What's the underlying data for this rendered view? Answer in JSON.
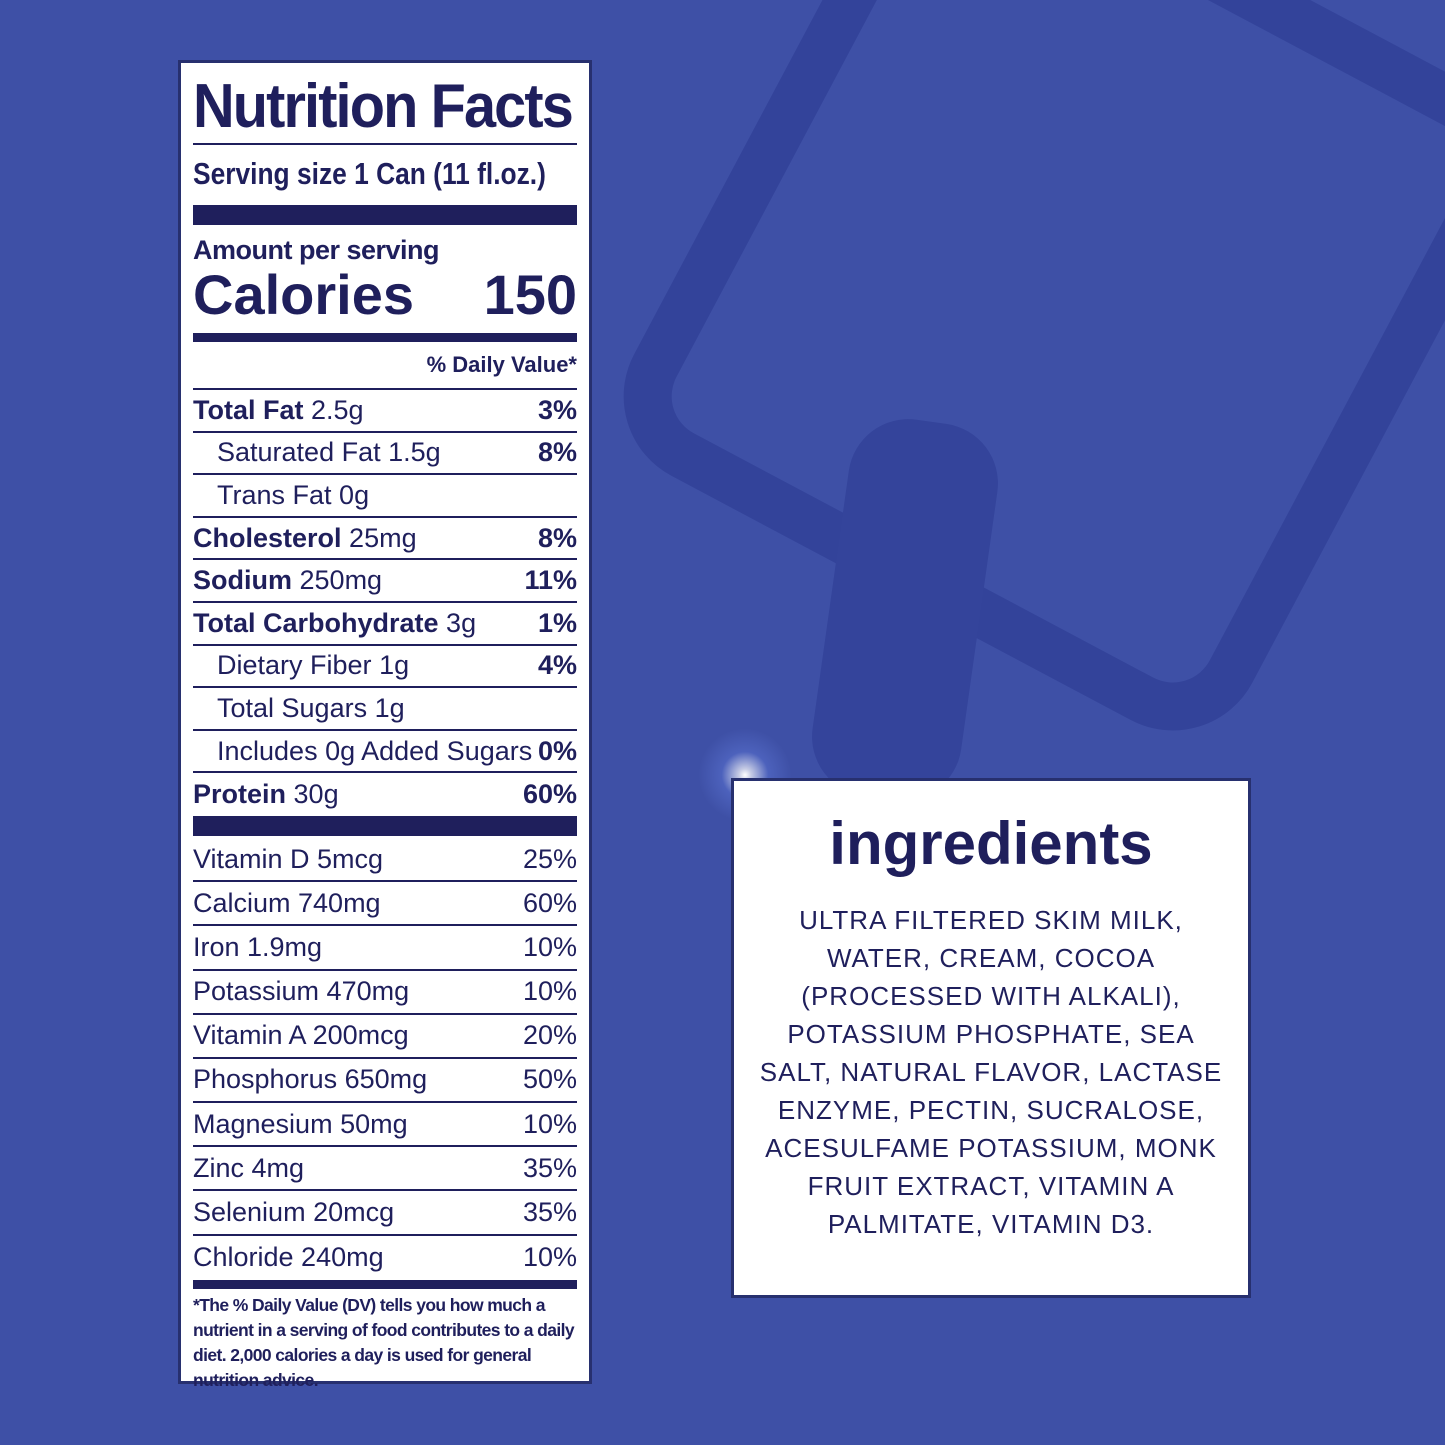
{
  "colors": {
    "background": "#3e50a6",
    "text": "#1f1f5c",
    "panel": "#ffffff"
  },
  "nutrition": {
    "title": "Nutrition Facts",
    "serving_size": "Serving size  1 Can (11 fl.oz.)",
    "amount_per_serving": "Amount per serving",
    "calories_label": "Calories",
    "calories_value": "150",
    "dv_header": "% Daily Value*",
    "nutrients": [
      {
        "name": "Total Fat",
        "amount": "2.5g",
        "dv": "3%",
        "bold": true
      },
      {
        "name": "Saturated Fat",
        "amount": "1.5g",
        "dv": "8%",
        "bold": false
      },
      {
        "name": "Trans Fat",
        "amount": "0g",
        "dv": "",
        "bold": false
      },
      {
        "name": "Cholesterol",
        "amount": "25mg",
        "dv": "8%",
        "bold": true
      },
      {
        "name": "Sodium",
        "amount": "250mg",
        "dv": "11%",
        "bold": true
      },
      {
        "name": "Total Carbohydrate",
        "amount": "3g",
        "dv": "1%",
        "bold": true
      },
      {
        "name": "Dietary Fiber",
        "amount": "1g",
        "dv": "4%",
        "bold": false
      },
      {
        "name": "Total Sugars",
        "amount": "1g",
        "dv": "",
        "bold": false
      },
      {
        "name": "Includes 0g Added Sugars",
        "amount": "",
        "dv": "0%",
        "bold": false
      },
      {
        "name": "Protein",
        "amount": "30g",
        "dv": "60%",
        "bold": true
      }
    ],
    "vitamins": [
      {
        "label": "Vitamin D 5mcg",
        "dv": "25%"
      },
      {
        "label": "Calcium 740mg",
        "dv": "60%"
      },
      {
        "label": "Iron 1.9mg",
        "dv": "10%"
      },
      {
        "label": "Potassium 470mg",
        "dv": "10%"
      },
      {
        "label": "Vitamin A 200mcg",
        "dv": "20%"
      },
      {
        "label": "Phosphorus 650mg",
        "dv": "50%"
      },
      {
        "label": "Magnesium 50mg",
        "dv": "10%"
      },
      {
        "label": "Zinc 4mg",
        "dv": "35%"
      },
      {
        "label": "Selenium 20mcg",
        "dv": "35%"
      },
      {
        "label": "Chloride 240mg",
        "dv": "10%"
      }
    ],
    "footnote": "*The % Daily Value (DV) tells you how much a nutrient in a serving of food contributes to a daily diet. 2,000 calories a day is used for general nutrition advice."
  },
  "ingredients": {
    "title": "ingredients",
    "text": "ULTRA FILTERED SKIM MILK, WATER, CREAM, COCOA (PROCESSED WITH ALKALI), POTASSIUM PHOSPHATE, SEA SALT, NATURAL FLAVOR, LACTASE ENZYME, PECTIN, SUCRALOSE, ACESULFAME POTASSIUM, MONK FRUIT EXTRACT, VITAMIN A PALMITATE, VITAMIN D3."
  }
}
